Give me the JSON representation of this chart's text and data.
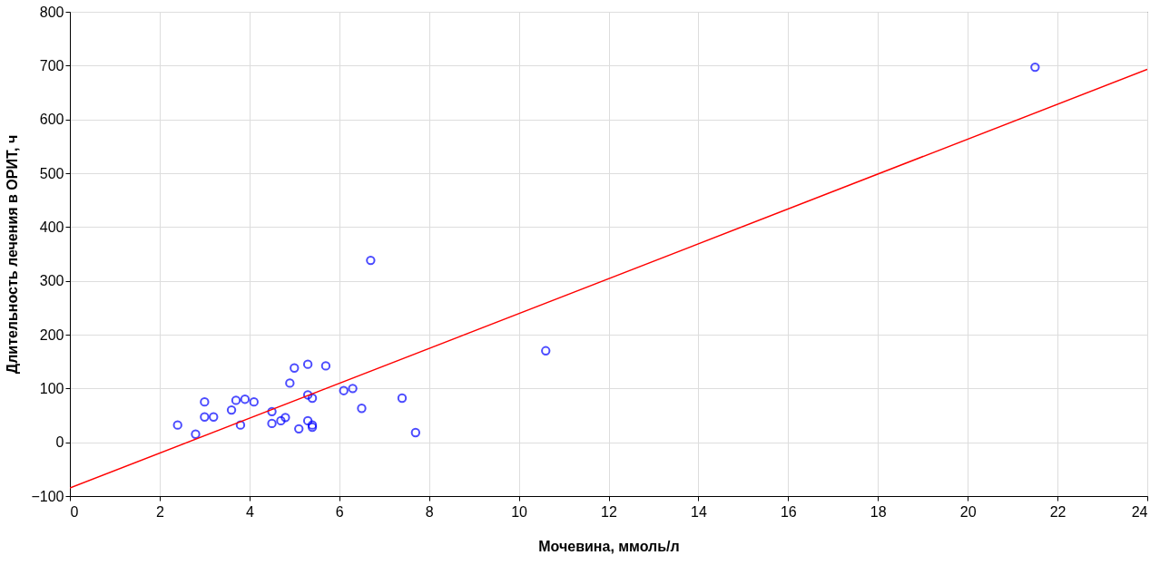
{
  "chart_data": {
    "type": "scatter",
    "xlabel": "Мочевина, ммоль/л",
    "ylabel": "Длительность лечения в ОРИТ, ч",
    "xlim": [
      0,
      24
    ],
    "xticks": [
      0,
      2,
      4,
      6,
      8,
      10,
      12,
      14,
      16,
      18,
      20,
      22,
      24
    ],
    "ylim": [
      -100,
      800
    ],
    "yticks": [
      -100,
      0,
      100,
      200,
      300,
      400,
      500,
      600,
      700,
      800
    ],
    "grid": true,
    "series": [
      {
        "marker": "circle",
        "color": "#0000ff",
        "x": [
          2.4,
          2.8,
          3.0,
          3.0,
          3.2,
          3.6,
          3.7,
          3.8,
          3.9,
          4.1,
          4.5,
          4.5,
          4.7,
          4.8,
          4.9,
          5.0,
          5.1,
          5.3,
          5.3,
          5.3,
          5.4,
          5.4,
          5.4,
          5.7,
          6.1,
          6.3,
          6.5,
          6.7,
          7.4,
          7.7,
          10.6,
          21.5
        ],
        "values": [
          32,
          15,
          75,
          47,
          47,
          60,
          78,
          32,
          80,
          75,
          57,
          35,
          40,
          46,
          110,
          138,
          25,
          145,
          88,
          40,
          82,
          32,
          28,
          142,
          96,
          100,
          63,
          338,
          82,
          18,
          170,
          697
        ]
      },
      {
        "type": "line",
        "marker": "none",
        "color": "#ff0000",
        "x": [
          0,
          24
        ],
        "values": [
          -85,
          693
        ]
      }
    ]
  }
}
